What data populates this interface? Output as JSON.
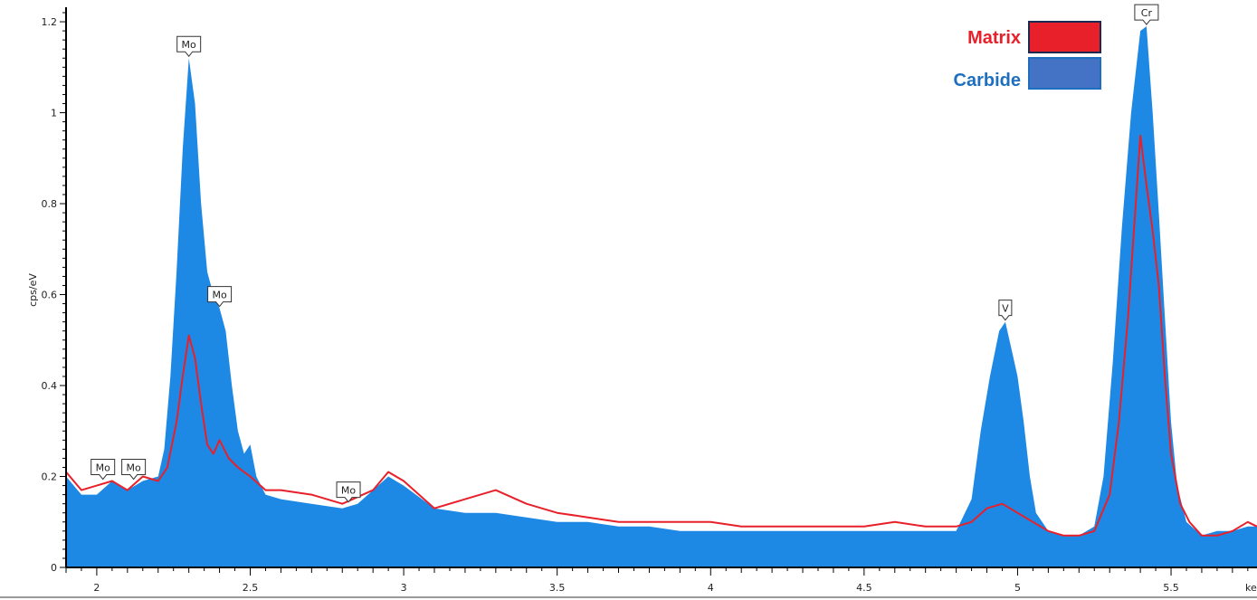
{
  "chart_data": {
    "type": "area",
    "title": "",
    "xlabel": "keV",
    "ylabel": "cps/eV",
    "xlim": [
      1.9,
      5.78
    ],
    "ylim": [
      0,
      1.22
    ],
    "grid": false,
    "legend_position": "top-right",
    "x_ticks": [
      2,
      2.5,
      3,
      3.5,
      4,
      4.5,
      5,
      5.5
    ],
    "x_tick_labels": [
      "2",
      "2.5",
      "3",
      "3.5",
      "4",
      "4.5",
      "5",
      "5.5"
    ],
    "y_ticks": [
      0,
      0.2,
      0.4,
      0.6,
      0.8,
      1,
      1.2
    ],
    "y_tick_labels": [
      "0",
      "0.2",
      "0.4",
      "0.6",
      "0.8",
      "1",
      "1.2"
    ],
    "series": [
      {
        "name": "Matrix",
        "color": "#e8202a",
        "style": "line",
        "points": [
          [
            1.9,
            0.21
          ],
          [
            1.95,
            0.17
          ],
          [
            2.0,
            0.18
          ],
          [
            2.05,
            0.19
          ],
          [
            2.1,
            0.17
          ],
          [
            2.15,
            0.2
          ],
          [
            2.2,
            0.19
          ],
          [
            2.23,
            0.22
          ],
          [
            2.26,
            0.32
          ],
          [
            2.28,
            0.42
          ],
          [
            2.3,
            0.51
          ],
          [
            2.32,
            0.46
          ],
          [
            2.34,
            0.36
          ],
          [
            2.36,
            0.27
          ],
          [
            2.38,
            0.25
          ],
          [
            2.4,
            0.28
          ],
          [
            2.43,
            0.24
          ],
          [
            2.46,
            0.22
          ],
          [
            2.5,
            0.2
          ],
          [
            2.55,
            0.17
          ],
          [
            2.6,
            0.17
          ],
          [
            2.7,
            0.16
          ],
          [
            2.8,
            0.14
          ],
          [
            2.9,
            0.17
          ],
          [
            2.95,
            0.21
          ],
          [
            3.0,
            0.19
          ],
          [
            3.1,
            0.13
          ],
          [
            3.2,
            0.15
          ],
          [
            3.3,
            0.17
          ],
          [
            3.4,
            0.14
          ],
          [
            3.5,
            0.12
          ],
          [
            3.6,
            0.11
          ],
          [
            3.7,
            0.1
          ],
          [
            3.8,
            0.1
          ],
          [
            3.9,
            0.1
          ],
          [
            4.0,
            0.1
          ],
          [
            4.1,
            0.09
          ],
          [
            4.2,
            0.09
          ],
          [
            4.3,
            0.09
          ],
          [
            4.4,
            0.09
          ],
          [
            4.5,
            0.09
          ],
          [
            4.6,
            0.1
          ],
          [
            4.7,
            0.09
          ],
          [
            4.8,
            0.09
          ],
          [
            4.85,
            0.1
          ],
          [
            4.9,
            0.13
          ],
          [
            4.95,
            0.14
          ],
          [
            5.0,
            0.12
          ],
          [
            5.05,
            0.1
          ],
          [
            5.1,
            0.08
          ],
          [
            5.15,
            0.07
          ],
          [
            5.2,
            0.07
          ],
          [
            5.25,
            0.08
          ],
          [
            5.3,
            0.16
          ],
          [
            5.33,
            0.32
          ],
          [
            5.36,
            0.55
          ],
          [
            5.38,
            0.75
          ],
          [
            5.4,
            0.95
          ],
          [
            5.42,
            0.84
          ],
          [
            5.44,
            0.74
          ],
          [
            5.46,
            0.62
          ],
          [
            5.48,
            0.42
          ],
          [
            5.5,
            0.25
          ],
          [
            5.53,
            0.14
          ],
          [
            5.56,
            0.1
          ],
          [
            5.6,
            0.07
          ],
          [
            5.65,
            0.07
          ],
          [
            5.7,
            0.08
          ],
          [
            5.75,
            0.1
          ],
          [
            5.78,
            0.09
          ]
        ]
      },
      {
        "name": "Carbide",
        "color": "#1e88e5",
        "style": "area",
        "points": [
          [
            1.9,
            0.2
          ],
          [
            1.95,
            0.16
          ],
          [
            2.0,
            0.16
          ],
          [
            2.05,
            0.19
          ],
          [
            2.1,
            0.17
          ],
          [
            2.15,
            0.19
          ],
          [
            2.2,
            0.2
          ],
          [
            2.22,
            0.26
          ],
          [
            2.24,
            0.42
          ],
          [
            2.26,
            0.65
          ],
          [
            2.28,
            0.92
          ],
          [
            2.3,
            1.12
          ],
          [
            2.32,
            1.02
          ],
          [
            2.34,
            0.8
          ],
          [
            2.36,
            0.65
          ],
          [
            2.38,
            0.6
          ],
          [
            2.4,
            0.57
          ],
          [
            2.42,
            0.52
          ],
          [
            2.44,
            0.4
          ],
          [
            2.46,
            0.3
          ],
          [
            2.48,
            0.25
          ],
          [
            2.5,
            0.27
          ],
          [
            2.52,
            0.2
          ],
          [
            2.55,
            0.16
          ],
          [
            2.6,
            0.15
          ],
          [
            2.7,
            0.14
          ],
          [
            2.8,
            0.13
          ],
          [
            2.85,
            0.14
          ],
          [
            2.9,
            0.17
          ],
          [
            2.95,
            0.2
          ],
          [
            3.0,
            0.18
          ],
          [
            3.1,
            0.13
          ],
          [
            3.2,
            0.12
          ],
          [
            3.3,
            0.12
          ],
          [
            3.4,
            0.11
          ],
          [
            3.5,
            0.1
          ],
          [
            3.6,
            0.1
          ],
          [
            3.7,
            0.09
          ],
          [
            3.8,
            0.09
          ],
          [
            3.9,
            0.08
          ],
          [
            4.0,
            0.08
          ],
          [
            4.1,
            0.08
          ],
          [
            4.2,
            0.08
          ],
          [
            4.3,
            0.08
          ],
          [
            4.4,
            0.08
          ],
          [
            4.5,
            0.08
          ],
          [
            4.6,
            0.08
          ],
          [
            4.7,
            0.08
          ],
          [
            4.8,
            0.08
          ],
          [
            4.85,
            0.15
          ],
          [
            4.88,
            0.3
          ],
          [
            4.91,
            0.42
          ],
          [
            4.94,
            0.52
          ],
          [
            4.96,
            0.54
          ],
          [
            4.98,
            0.48
          ],
          [
            5.0,
            0.42
          ],
          [
            5.02,
            0.32
          ],
          [
            5.04,
            0.2
          ],
          [
            5.06,
            0.12
          ],
          [
            5.1,
            0.08
          ],
          [
            5.15,
            0.07
          ],
          [
            5.2,
            0.07
          ],
          [
            5.25,
            0.09
          ],
          [
            5.28,
            0.2
          ],
          [
            5.31,
            0.45
          ],
          [
            5.34,
            0.75
          ],
          [
            5.37,
            1.0
          ],
          [
            5.4,
            1.18
          ],
          [
            5.42,
            1.19
          ],
          [
            5.44,
            1.0
          ],
          [
            5.46,
            0.78
          ],
          [
            5.48,
            0.55
          ],
          [
            5.5,
            0.32
          ],
          [
            5.52,
            0.18
          ],
          [
            5.55,
            0.1
          ],
          [
            5.6,
            0.07
          ],
          [
            5.65,
            0.08
          ],
          [
            5.7,
            0.08
          ],
          [
            5.75,
            0.09
          ],
          [
            5.78,
            0.09
          ]
        ]
      }
    ],
    "peak_labels": [
      {
        "text": "Mo",
        "x": 2.3,
        "y": 1.12
      },
      {
        "text": "Mo",
        "x": 2.4,
        "y": 0.57
      },
      {
        "text": "Mo",
        "x": 2.02,
        "y": 0.19
      },
      {
        "text": "Mo",
        "x": 2.12,
        "y": 0.19
      },
      {
        "text": "Mo",
        "x": 2.82,
        "y": 0.14
      },
      {
        "text": "V",
        "x": 4.96,
        "y": 0.54
      },
      {
        "text": "Cr",
        "x": 5.42,
        "y": 1.19
      }
    ],
    "legend": [
      {
        "label": "Matrix",
        "color": "#e8202a",
        "text_color": "#e8202a",
        "border": "#1a2a50"
      },
      {
        "label": "Carbide",
        "color": "#4472c4",
        "text_color": "#1f6fbf",
        "border": "#1f6fbf"
      }
    ]
  }
}
